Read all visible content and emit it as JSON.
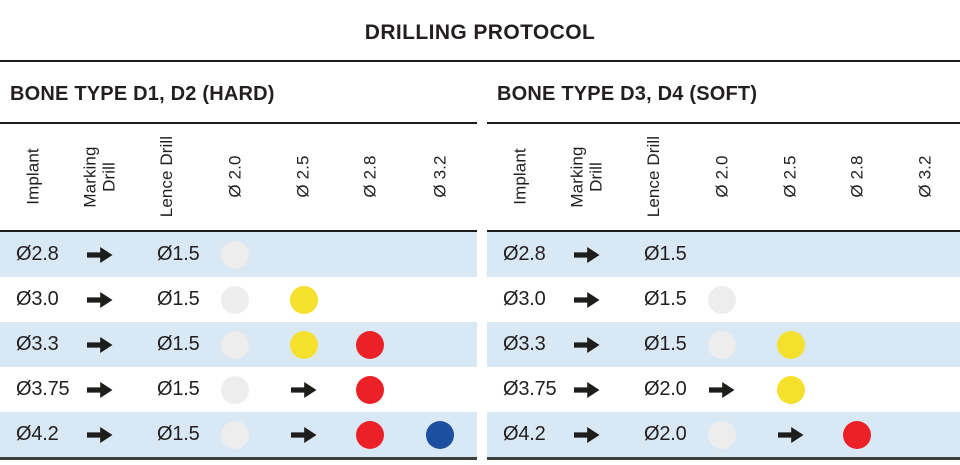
{
  "title": "DRILLING PROTOCOL",
  "colors": {
    "text": "#231f20",
    "rule": "#1d1d1b",
    "bottom_rule": "#3e3e3d",
    "row_stripe": "#d9e8f5",
    "dot_gray": "#ededee",
    "dot_yellow": "#f5e12b",
    "dot_red": "#ec2127",
    "dot_blue": "#1c4f9f"
  },
  "tables": [
    {
      "heading": "BONE TYPE D1, D2 (HARD)",
      "columns": [
        [
          "Implant"
        ],
        [
          "Marking",
          "Drill"
        ],
        [
          "Lence Drill"
        ],
        [
          "Ø 2.0"
        ],
        [
          "Ø 2.5"
        ],
        [
          "Ø 2.8"
        ],
        [
          "Ø 3.2"
        ]
      ],
      "rows": [
        [
          "Ø2.8",
          "arrow",
          "Ø1.5",
          "dot:gray",
          "",
          "",
          ""
        ],
        [
          "Ø3.0",
          "arrow",
          "Ø1.5",
          "dot:gray",
          "dot:yellow",
          "",
          ""
        ],
        [
          "Ø3.3",
          "arrow",
          "Ø1.5",
          "dot:gray",
          "dot:yellow",
          "dot:red",
          ""
        ],
        [
          "Ø3.75",
          "arrow",
          "Ø1.5",
          "dot:gray",
          "arrow",
          "dot:red",
          ""
        ],
        [
          "Ø4.2",
          "arrow",
          "Ø1.5",
          "dot:gray",
          "arrow",
          "dot:red",
          "dot:blue"
        ]
      ]
    },
    {
      "heading": "BONE TYPE D3, D4 (SOFT)",
      "columns": [
        [
          "Implant"
        ],
        [
          "Marking",
          "Drill"
        ],
        [
          "Lence Drill"
        ],
        [
          "Ø 2.0"
        ],
        [
          "Ø 2.5"
        ],
        [
          "Ø 2.8"
        ],
        [
          "Ø 3.2"
        ]
      ],
      "rows": [
        [
          "Ø2.8",
          "arrow",
          "Ø1.5",
          "",
          "",
          "",
          ""
        ],
        [
          "Ø3.0",
          "arrow",
          "Ø1.5",
          "dot:gray",
          "",
          "",
          ""
        ],
        [
          "Ø3.3",
          "arrow",
          "Ø1.5",
          "dot:gray",
          "dot:yellow",
          "",
          ""
        ],
        [
          "Ø3.75",
          "arrow",
          "Ø2.0",
          "arrow",
          "dot:yellow",
          "",
          ""
        ],
        [
          "Ø4.2",
          "arrow",
          "Ø2.0",
          "dot:gray",
          "arrow",
          "dot:red",
          ""
        ]
      ]
    }
  ]
}
